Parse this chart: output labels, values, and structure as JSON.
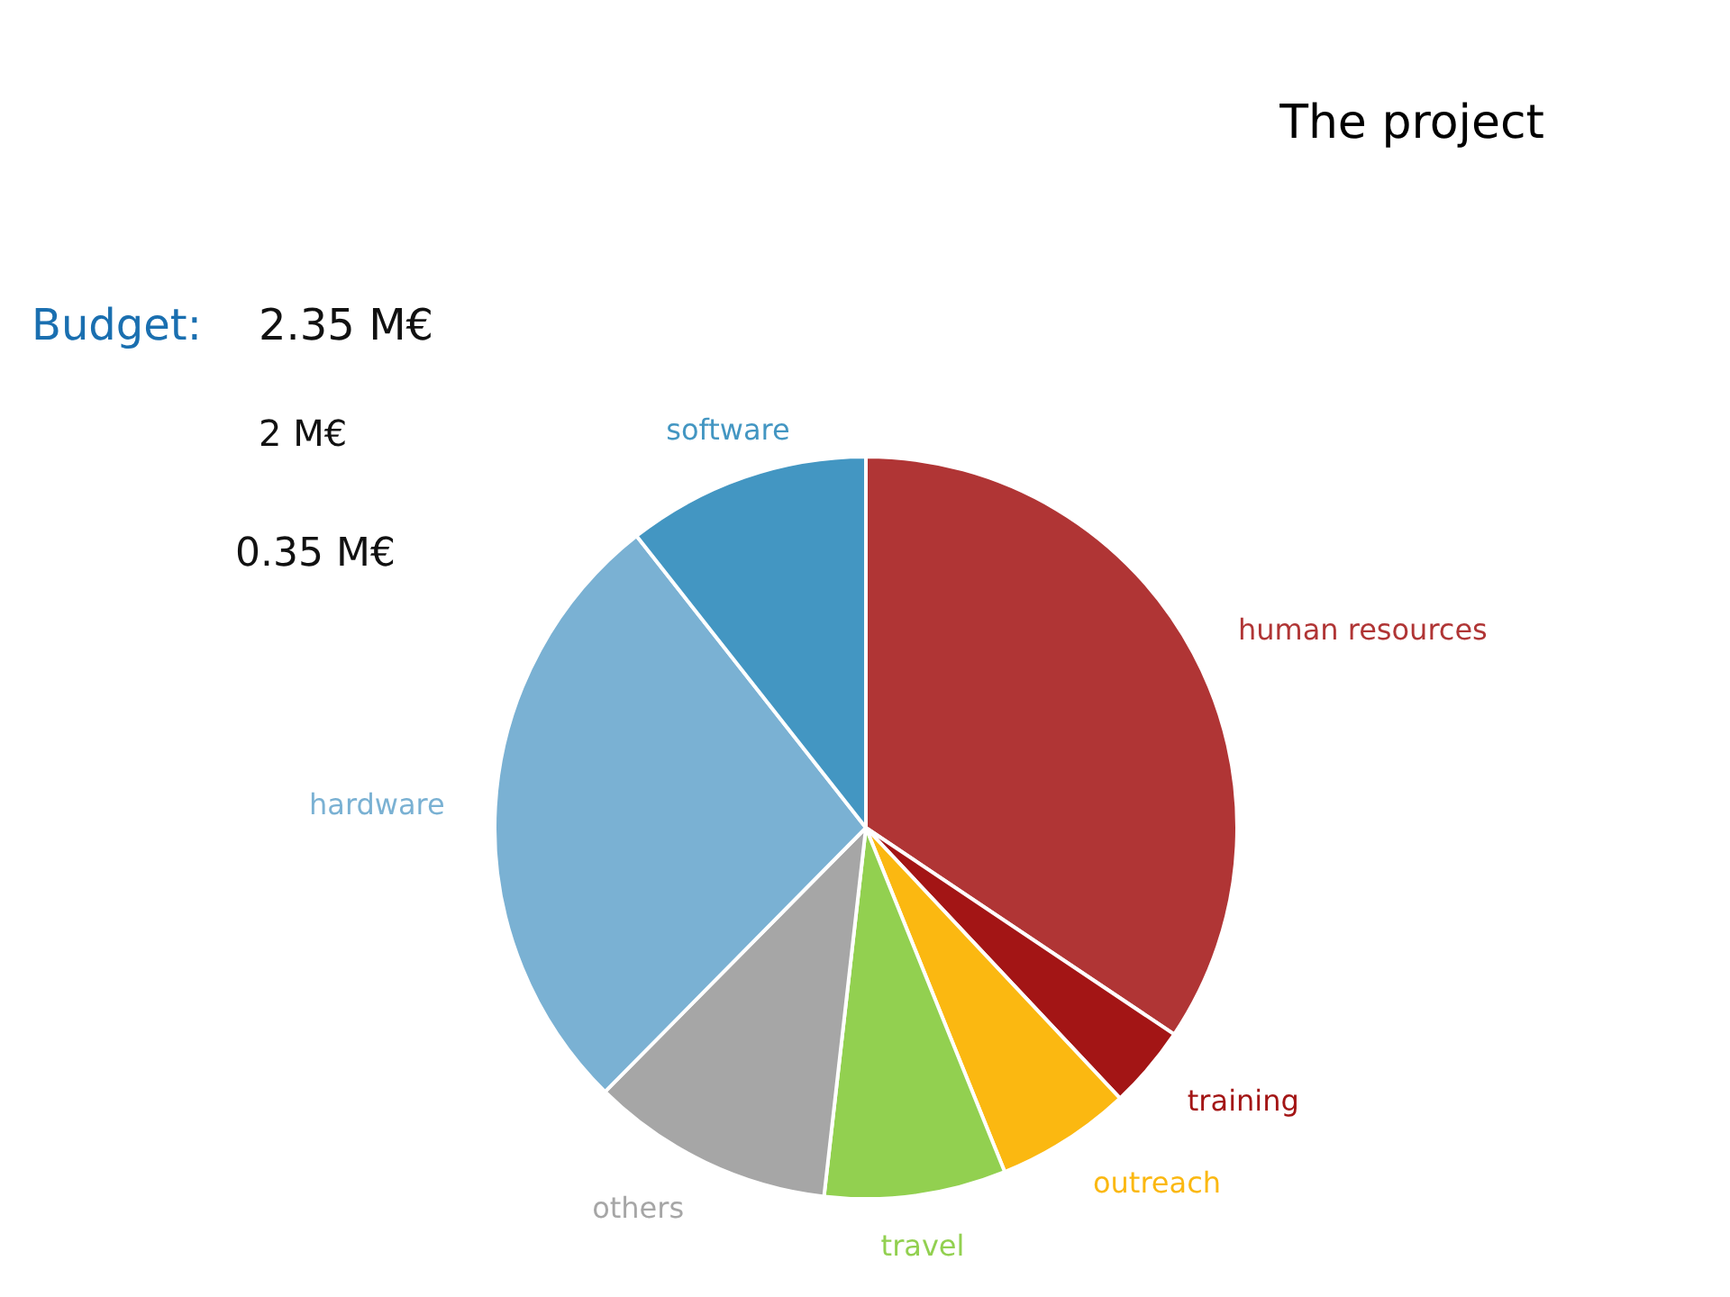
{
  "chart_data": {
    "type": "pie",
    "title": "The project",
    "categories": [
      "human resources",
      "training",
      "outreach",
      "travel",
      "others",
      "hardware",
      "software"
    ],
    "values": [
      34.4,
      3.6,
      5.9,
      7.9,
      10.6,
      27.0,
      10.6
    ],
    "colors": [
      "#b03535",
      "#a31515",
      "#fbb811",
      "#92d050",
      "#a6a6a6",
      "#7ab1d3",
      "#4396c2"
    ],
    "annotations": [
      "Budget:",
      "2.35 M€",
      "2 M€",
      "0.35 M€"
    ]
  }
}
